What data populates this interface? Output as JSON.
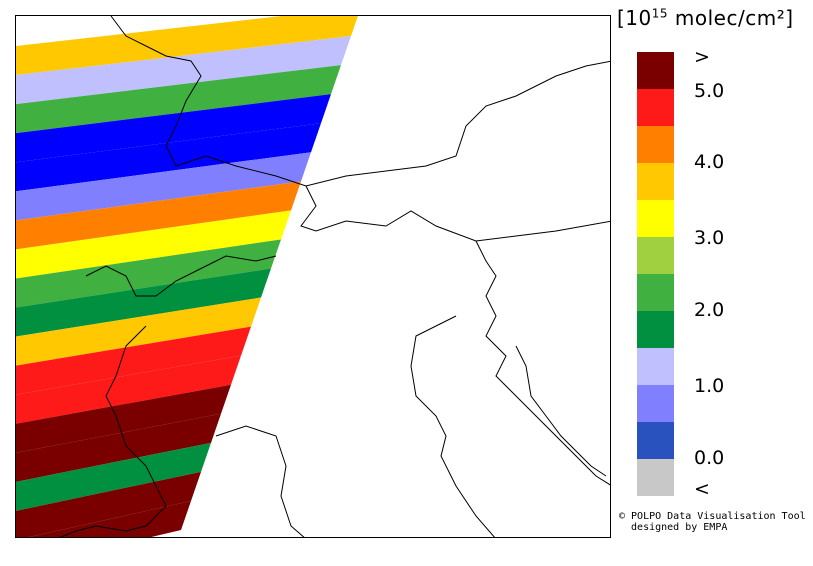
{
  "legend": {
    "unit_prefix": "[10",
    "unit_exp": "15",
    "unit_suffix": " molec/cm²]",
    "colors": [
      "#7a0000",
      "#ff1a1a",
      "#ff8000",
      "#ffc800",
      "#ffff00",
      "#a0d040",
      "#40b040",
      "#009040",
      "#c0c0ff",
      "#8080ff",
      "#2a52be",
      "#c8c8c8"
    ],
    "ticks": [
      ">",
      "5.0",
      "4.0",
      "3.0",
      "2.0",
      "1.0",
      "0.0",
      "<"
    ]
  },
  "credit": {
    "line1": "© POLPO Data Visualisation Tool",
    "line2": "  designed by EMPA"
  },
  "swath": {
    "bands": [
      {
        "color": "#ffc800"
      },
      {
        "color": "#c0c0ff"
      },
      {
        "color": "#40b040"
      },
      {
        "color": "#0000ff"
      },
      {
        "color": "#0000ff"
      },
      {
        "color": "#8080ff"
      },
      {
        "color": "#ff8000"
      },
      {
        "color": "#ffff00"
      },
      {
        "color": "#40b040"
      },
      {
        "color": "#009040"
      },
      {
        "color": "#ffc800"
      },
      {
        "color": "#ff1a1a"
      },
      {
        "color": "#ff1a1a"
      },
      {
        "color": "#7a0000"
      },
      {
        "color": "#7a0000"
      },
      {
        "color": "#009040"
      },
      {
        "color": "#7a0000"
      },
      {
        "color": "#7a0000"
      }
    ]
  }
}
